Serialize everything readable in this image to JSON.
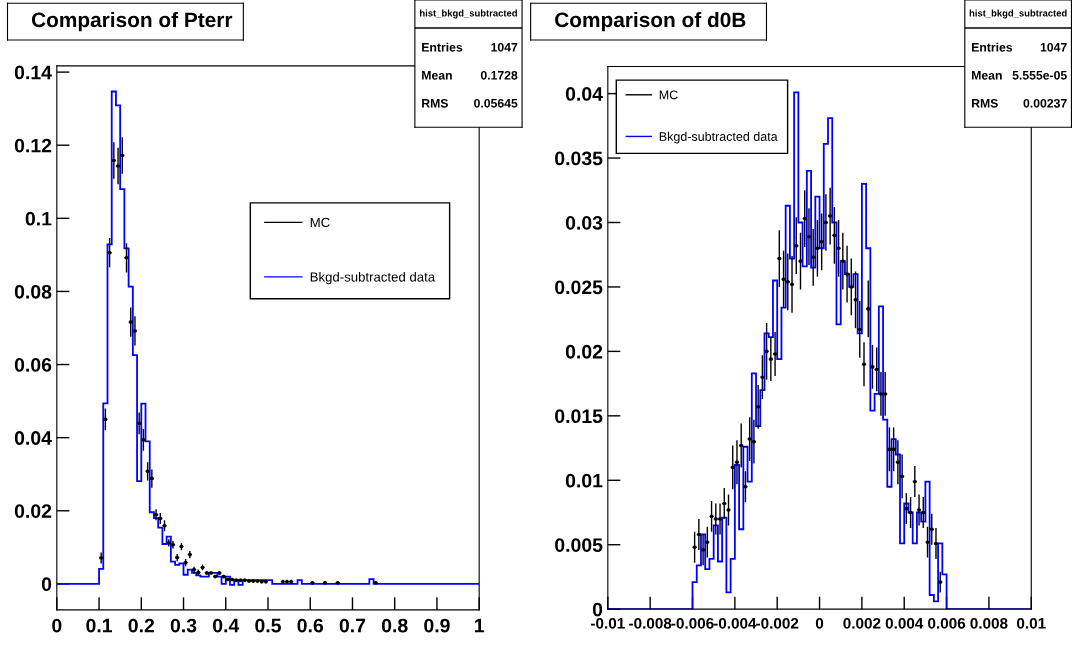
{
  "chart_data": [
    {
      "type": "histogram",
      "title": "Comparison of Pterr",
      "legend": "right",
      "xlim": [
        0,
        1
      ],
      "ylim": [
        -0.0071,
        0.1417
      ],
      "xticks": [
        0,
        0.1,
        0.2,
        0.3,
        0.4,
        0.5,
        0.6,
        0.7,
        0.8,
        0.9,
        1
      ],
      "yticks": [
        0,
        0.02,
        0.04,
        0.06,
        0.08,
        0.1,
        0.12,
        0.14
      ],
      "annotations": [
        "hist_bkgd_subtracted",
        "Entries",
        "1047",
        "Mean",
        "0.1728",
        "RMS",
        "0.05645"
      ],
      "bins": [
        0,
        0.01,
        0.02,
        0.03,
        0.04,
        0.05,
        0.06,
        0.07,
        0.08,
        0.09,
        0.1,
        0.11,
        0.12,
        0.13,
        0.14,
        0.15,
        0.16,
        0.17,
        0.18,
        0.19,
        0.2,
        0.21,
        0.22,
        0.23,
        0.24,
        0.25,
        0.26,
        0.27,
        0.28,
        0.29,
        0.3,
        0.31,
        0.32,
        0.33,
        0.34,
        0.35,
        0.36,
        0.37,
        0.38,
        0.39,
        0.4,
        0.41,
        0.42,
        0.43,
        0.44,
        0.45,
        0.46,
        0.47,
        0.48,
        0.49,
        0.5,
        0.51,
        0.52,
        0.53,
        0.54,
        0.55,
        0.56,
        0.57,
        0.58,
        0.59,
        0.6,
        0.61,
        0.62,
        0.63,
        0.64,
        0.65,
        0.66,
        0.67,
        0.68,
        0.69,
        0.7,
        0.71,
        0.72,
        0.73,
        0.74,
        0.75,
        0.76,
        0.77,
        0.78,
        0.79,
        0.8,
        0.81,
        0.82,
        0.83,
        0.84,
        0.85,
        0.86,
        0.87,
        0.88,
        0.89,
        0.9,
        0.91,
        0.92,
        0.93,
        0.94,
        0.95,
        0.96,
        0.97,
        0.98,
        0.99,
        1
      ],
      "series": [
        {
          "name": "MC",
          "type": "scatter",
          "color": "#000000",
          "x": [
            0.105,
            0.115,
            0.125,
            0.135,
            0.145,
            0.155,
            0.165,
            0.175,
            0.185,
            0.195,
            0.205,
            0.215,
            0.225,
            0.235,
            0.245,
            0.255,
            0.265,
            0.275,
            0.285,
            0.295,
            0.305,
            0.315,
            0.325,
            0.335,
            0.345,
            0.355,
            0.365,
            0.375,
            0.385,
            0.395,
            0.405,
            0.415,
            0.425,
            0.435,
            0.445,
            0.455,
            0.465,
            0.475,
            0.485,
            0.495,
            0.535,
            0.545,
            0.555,
            0.605,
            0.635,
            0.665,
            0.755
          ],
          "values": [
            0.0071,
            0.045,
            0.0906,
            0.1158,
            0.1143,
            0.1172,
            0.0892,
            0.0716,
            0.0692,
            0.0439,
            0.0394,
            0.0308,
            0.0288,
            0.0189,
            0.0179,
            0.0159,
            0.0112,
            0.0107,
            0.0072,
            0.0102,
            0.0058,
            0.008,
            0.0039,
            0.0031,
            0.0045,
            0.003,
            0.003,
            0.002,
            0.003,
            0.002,
            0.0012,
            0.0012,
            0.001,
            0.001,
            0.001,
            0.0008,
            0.0008,
            0.0008,
            0.0006,
            0.0006,
            0.0006,
            0.0006,
            0.0006,
            0.0003,
            0.0003,
            0.0003,
            0.0003
          ],
          "errors": [
            0.0015,
            0.003,
            0.004,
            0.005,
            0.005,
            0.005,
            0.004,
            0.004,
            0.004,
            0.003,
            0.003,
            0.0025,
            0.0025,
            0.0015,
            0.0015,
            0.0015,
            0.001,
            0.001,
            0.001,
            0.001,
            0.001,
            0.001,
            0.0008,
            0.0008,
            0.0008,
            0.0005,
            0.0005,
            0.0005,
            0.0005,
            0.0005,
            0.0005,
            0.0005,
            0.0005,
            0.0005,
            0.0005,
            0.0005,
            0.0005,
            0.0005,
            0.0005,
            0.0005,
            0.0005,
            0.0005,
            0.0005,
            0.0005,
            0.0005,
            0.0005,
            0.0005
          ],
          "xerrors": [
            0.005,
            0.005,
            0.005,
            0.005,
            0.005,
            0.005,
            0.005,
            0.005,
            0.005,
            0.005,
            0.005,
            0.005,
            0.005,
            0.005,
            0.005,
            0.005,
            0.005,
            0.005,
            0.005,
            0.005,
            0.005,
            0.005,
            0.005,
            0.005,
            0.005,
            0.005,
            0.005,
            0.005,
            0.005,
            0.005,
            0.005,
            0.005,
            0.005,
            0.005,
            0.005,
            0.005,
            0.005,
            0.005,
            0.005,
            0.005,
            0.005,
            0.005,
            0.005,
            0.005,
            0.005,
            0.005,
            0.005
          ]
        },
        {
          "name": "Bkgd-subtracted data",
          "type": "histogram",
          "color": "#0000ff",
          "values": [
            0,
            0,
            0,
            0,
            0,
            0,
            0,
            0,
            0,
            0,
            0.0041,
            0.0494,
            0.0929,
            0.1347,
            0.1309,
            0.108,
            0.0918,
            0.0813,
            0.0626,
            0.0281,
            0.0493,
            0.039,
            0.0196,
            0.018,
            0.0154,
            0.0109,
            0.0129,
            0.0061,
            0.0052,
            0.0056,
            0.0025,
            0.0039,
            0.003,
            0.0023,
            0.002,
            0.002,
            0.003,
            0.003,
            0.002,
            0,
            0.002,
            -0.0003,
            0.001,
            -0.0003,
            0.001,
            0.001,
            0.001,
            0.001,
            0.001,
            0.001,
            0.001,
            0,
            0,
            0,
            0,
            0,
            0,
            0.001,
            0,
            0,
            0,
            0,
            0,
            0,
            0,
            0,
            0,
            0,
            0,
            0,
            0,
            0,
            0,
            0,
            0.0013,
            0,
            0,
            0,
            0,
            0,
            0,
            0,
            0,
            0,
            0,
            0,
            0,
            0,
            0,
            0,
            0,
            0,
            0,
            0,
            0,
            0,
            0,
            0,
            0,
            0
          ]
        }
      ]
    },
    {
      "type": "histogram",
      "title": "Comparison of d0B",
      "legend": "top left",
      "xlim": [
        -0.01,
        0.01
      ],
      "ylim": [
        0,
        0.0421
      ],
      "xticks": [
        -0.01,
        -0.008,
        -0.006,
        -0.004,
        -0.002,
        0,
        0.002,
        0.004,
        0.006,
        0.008,
        0.01
      ],
      "yticks": [
        0,
        0.005,
        0.01,
        0.015,
        0.02,
        0.025,
        0.03,
        0.035,
        0.04
      ],
      "annotations": [
        "hist_bkgd_subtracted",
        "Entries",
        "1047",
        "Mean",
        "5.555e-05",
        "RMS",
        "0.00237"
      ],
      "bins": [
        -0.01,
        -0.0098,
        -0.0096,
        -0.0094,
        -0.0092,
        -0.009,
        -0.0088,
        -0.0086,
        -0.0084,
        -0.0082,
        -0.008,
        -0.0078,
        -0.0076,
        -0.0074,
        -0.0072,
        -0.007,
        -0.0068,
        -0.0066,
        -0.0064,
        -0.0062,
        -0.006,
        -0.0058,
        -0.0056,
        -0.0054,
        -0.0052,
        -0.005,
        -0.0048,
        -0.0046,
        -0.0044,
        -0.0042,
        -0.004,
        -0.0038,
        -0.0036,
        -0.0034,
        -0.0032,
        -0.003,
        -0.0028,
        -0.0026,
        -0.0024,
        -0.0022,
        -0.002,
        -0.0018,
        -0.0016,
        -0.0014,
        -0.0012,
        -0.001,
        -0.0008,
        -0.0006,
        -0.0004,
        -0.0002,
        0,
        0.0002,
        0.0004,
        0.0006,
        0.0008,
        0.001,
        0.0012,
        0.0014,
        0.0016,
        0.0018,
        0.002,
        0.0022,
        0.0024,
        0.0026,
        0.0028,
        0.003,
        0.0032,
        0.0034,
        0.0036,
        0.0038,
        0.004,
        0.0042,
        0.0044,
        0.0046,
        0.0048,
        0.005,
        0.0052,
        0.0054,
        0.0056,
        0.0058,
        0.006,
        0.0062,
        0.0064,
        0.0066,
        0.0068,
        0.007,
        0.0072,
        0.0074,
        0.0076,
        0.0078,
        0.008,
        0.0082,
        0.0084,
        0.0086,
        0.0088,
        0.009,
        0.0092,
        0.0094,
        0.0096,
        0.0098,
        0.01
      ],
      "series": [
        {
          "name": "MC",
          "type": "scatter",
          "color": "#000000",
          "x": [
            -0.0059,
            -0.0057,
            -0.0055,
            -0.0053,
            -0.0051,
            -0.0049,
            -0.0047,
            -0.0045,
            -0.0043,
            -0.0041,
            -0.0039,
            -0.0037,
            -0.0035,
            -0.0033,
            -0.0031,
            -0.0029,
            -0.0027,
            -0.0025,
            -0.0023,
            -0.0021,
            -0.0019,
            -0.0017,
            -0.0015,
            -0.0013,
            -0.0011,
            -0.0009,
            -0.0007,
            -0.0005,
            -0.0003,
            -0.0001,
            0.0001,
            0.0003,
            0.0005,
            0.0007,
            0.0009,
            0.0011,
            0.0013,
            0.0015,
            0.0017,
            0.0019,
            0.0021,
            0.0023,
            0.0025,
            0.0027,
            0.0029,
            0.0031,
            0.0033,
            0.0035,
            0.0037,
            0.0039,
            0.0041,
            0.0043,
            0.0045,
            0.0047,
            0.0049,
            0.0051,
            0.0053,
            0.0055,
            0.0057
          ],
          "values": [
            0.0048,
            0.0058,
            0.0046,
            0.0052,
            0.0072,
            0.007,
            0.007,
            0.0082,
            0.0077,
            0.011,
            0.0114,
            0.0127,
            0.0095,
            0.0132,
            0.013,
            0.0157,
            0.018,
            0.02,
            0.0194,
            0.0198,
            0.0272,
            0.0256,
            0.0254,
            0.0252,
            0.0282,
            0.027,
            0.0303,
            0.0289,
            0.0273,
            0.028,
            0.0285,
            0.03,
            0.0305,
            0.029,
            0.028,
            0.027,
            0.026,
            0.025,
            0.024,
            0.0217,
            0.019,
            0.0233,
            0.0188,
            0.0186,
            0.0167,
            0.0167,
            0.0124,
            0.0124,
            0.0114,
            0.0103,
            0.0078,
            0.0075,
            0.0099,
            0.0077,
            0.0075,
            0.0052,
            0.0062,
            0.0051,
            0.0021
          ],
          "errors": [
            0.0012,
            0.0012,
            0.0012,
            0.0012,
            0.0012,
            0.0012,
            0.0012,
            0.0012,
            0.0012,
            0.0017,
            0.0017,
            0.0017,
            0.0012,
            0.0017,
            0.0017,
            0.0017,
            0.0017,
            0.0022,
            0.0017,
            0.0017,
            0.0022,
            0.0022,
            0.0022,
            0.0022,
            0.0022,
            0.0022,
            0.0022,
            0.0022,
            0.0022,
            0.0022,
            0.0022,
            0.0022,
            0.0022,
            0.0022,
            0.0022,
            0.0022,
            0.0022,
            0.0022,
            0.0022,
            0.0022,
            0.0017,
            0.0022,
            0.0017,
            0.0017,
            0.0017,
            0.0017,
            0.0017,
            0.0017,
            0.0017,
            0.0017,
            0.0012,
            0.0012,
            0.0012,
            0.0012,
            0.0012,
            0.0012,
            0.0012,
            0.0012,
            0.0008
          ],
          "xerrors": [
            0.0001,
            0.0001,
            0.0001,
            0.0001,
            0.0001,
            0.0001,
            0.0001,
            0.0001,
            0.0001,
            0.0001,
            0.0001,
            0.0001,
            0.0001,
            0.0001,
            0.0001,
            0.0001,
            0.0001,
            0.0001,
            0.0001,
            0.0001,
            0.0001,
            0.0001,
            0.0001,
            0.0001,
            0.0001,
            0.0001,
            0.0001,
            0.0001,
            0.0001,
            0.0001,
            0.0001,
            0.0001,
            0.0001,
            0.0001,
            0.0001,
            0.0001,
            0.0001,
            0.0001,
            0.0001,
            0.0001,
            0.0001,
            0.0001,
            0.0001,
            0.0001,
            0.0001,
            0.0001,
            0.0001,
            0.0001,
            0.0001,
            0.0001,
            0.0001,
            0.0001,
            0.0001,
            0.0001,
            0.0001,
            0.0001,
            0.0001,
            0.0001,
            0.0001
          ]
        },
        {
          "name": "Bkgd-subtracted data",
          "type": "histogram",
          "color": "#0000ff",
          "values": [
            0,
            0,
            0,
            0,
            0,
            0,
            0,
            0,
            0,
            0,
            0,
            0,
            0,
            0,
            0,
            0,
            0,
            0,
            0,
            0,
            0.0021,
            0.0034,
            0.0058,
            0.0031,
            0.0039,
            0.0065,
            0.0037,
            0.0071,
            0.0013,
            0.0039,
            0.0112,
            0.0062,
            0.0126,
            0.0099,
            0.0183,
            0.0142,
            0.017,
            0.0214,
            0.0211,
            0.0255,
            0.0194,
            0.0234,
            0.0313,
            0.0272,
            0.0401,
            0.03,
            0.0266,
            0.034,
            0.0265,
            0.032,
            0.028,
            0.0361,
            0.0381,
            0.03,
            0.0221,
            0.027,
            0.026,
            0.025,
            0.026,
            0.0214,
            0.033,
            0.028,
            0.0154,
            0.0167,
            0.0235,
            0.0147,
            0.0095,
            0.0132,
            0.012,
            0.0051,
            0.0082,
            0.0075,
            0.0051,
            0.0075,
            0.0068,
            0.0099,
            0.0011,
            0.0006,
            0.0051,
            0.0027,
            0,
            0,
            0,
            0,
            0,
            0,
            0,
            0,
            0,
            0,
            0,
            0,
            0,
            0,
            0,
            0,
            0,
            0,
            0,
            0
          ]
        }
      ]
    }
  ]
}
